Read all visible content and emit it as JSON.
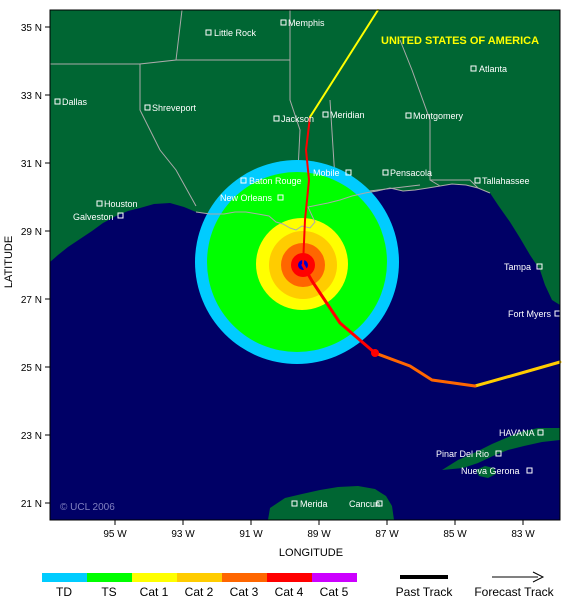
{
  "country_label": "UNITED STATES OF AMERICA",
  "copyright": "© UCL 2006",
  "axes": {
    "xlabel": "LONGITUDE",
    "ylabel": "LATITUDE",
    "x_ticks": [
      "95 W",
      "93 W",
      "91 W",
      "89 W",
      "87 W",
      "85 W",
      "83 W"
    ],
    "y_ticks": [
      "35 N",
      "33 N",
      "31 N",
      "29 N",
      "27 N",
      "25 N",
      "23 N",
      "21 N"
    ]
  },
  "cities": {
    "memphis": "Memphis",
    "little_rock": "Little Rock",
    "atlanta": "Atlanta",
    "dallas": "Dallas",
    "shreveport": "Shreveport",
    "jackson": "Jackson",
    "meridian": "Meridian",
    "montgomery": "Montgomery",
    "baton_rouge": "Baton Rouge",
    "mobile": "Mobile",
    "pensacola": "Pensacola",
    "tallahassee": "Tallahassee",
    "houston": "Houston",
    "galveston": "Galveston",
    "new_orleans": "New Orleans",
    "tampa": "Tampa",
    "fort_myers": "Fort Myers",
    "havana": "HAVANA",
    "pinar_del_rio": "Pinar Del Rio",
    "nueva_gerona": "Nueva Gerona",
    "merida": "Merida",
    "cancun": "Cancun"
  },
  "legend": {
    "categories": [
      {
        "label": "TD",
        "color": "#00ccff"
      },
      {
        "label": "TS",
        "color": "#00ff00"
      },
      {
        "label": "Cat 1",
        "color": "#ffff00"
      },
      {
        "label": "Cat 2",
        "color": "#ffcc00"
      },
      {
        "label": "Cat 3",
        "color": "#ff6600"
      },
      {
        "label": "Cat 4",
        "color": "#ff0000"
      },
      {
        "label": "Cat 5",
        "color": "#cc00ff"
      }
    ],
    "past_track": "Past Track",
    "forecast_track": "Forecast Track"
  },
  "colors": {
    "ocean": "#000066",
    "land": "#006633",
    "border": "#aaaaaa",
    "eye": "#0000cc",
    "forecast_line": "#ffff00"
  }
}
